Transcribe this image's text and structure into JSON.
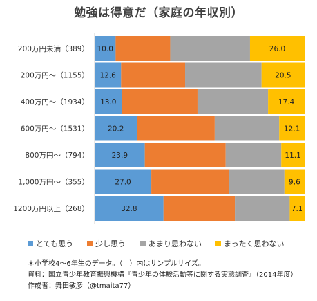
{
  "chart_data": {
    "type": "bar",
    "orientation": "horizontal",
    "stacked": true,
    "normalized_percent": true,
    "title": "勉強は得意だ（家庭の年収別）",
    "categories": [
      "200万円未満（389）",
      "200万円～（1155）",
      "400万円～（1934）",
      "600万円～（1531）",
      "800万円～（794）",
      "1,000万円～（355）",
      "1200万円以上（268）"
    ],
    "series": [
      {
        "name": "とても思う",
        "color": "#5b9bd5",
        "values": [
          10.0,
          12.6,
          13.0,
          20.2,
          23.9,
          27.0,
          32.8
        ],
        "labels": [
          "10.0",
          "12.6",
          "13.0",
          "20.2",
          "23.9",
          "27.0",
          "32.8"
        ]
      },
      {
        "name": "少し思う",
        "color": "#ed7d31",
        "values": [
          26.0,
          30.5,
          36.0,
          37.0,
          38.5,
          37.0,
          34.0
        ],
        "labels": null
      },
      {
        "name": "あまり思わない",
        "color": "#a5a5a5",
        "values": [
          38.0,
          36.4,
          33.6,
          30.7,
          26.5,
          26.4,
          26.1
        ],
        "labels": null
      },
      {
        "name": "まったく思わない",
        "color": "#ffc000",
        "values": [
          26.0,
          20.5,
          17.4,
          12.1,
          11.1,
          9.6,
          7.1
        ],
        "labels": [
          "26.0",
          "20.5",
          "17.4",
          "12.1",
          "11.1",
          "9.6",
          "7.1"
        ]
      }
    ],
    "legend_position": "bottom",
    "grid": false,
    "xlim": [
      0,
      100
    ]
  },
  "notes": [
    "＊小学校4～6年生のデータ。（　）内はサンプルサイズ。",
    "資料：国立青少年教育振興機構『青少年の体験活動等に関する実態調査』（2014年度）",
    "作成者：舞田敏彦（@tmaita77）"
  ]
}
